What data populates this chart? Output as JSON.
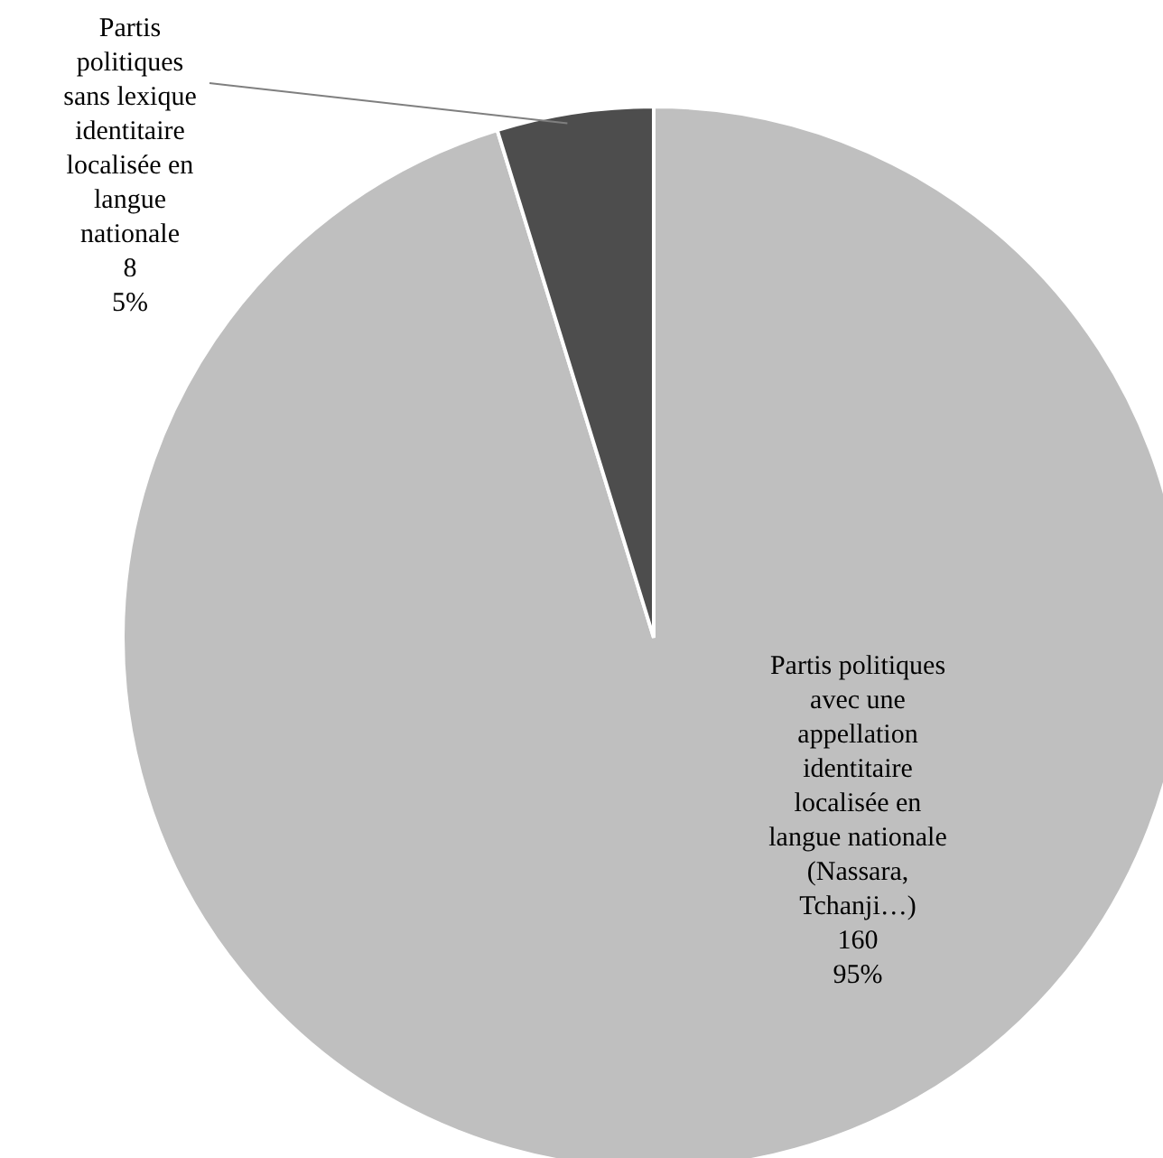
{
  "chart_data": {
    "type": "pie",
    "categories": [
      "Partis politiques avec une appellation identitaire localisée en langue nationale (Nassara, Tchanji…)",
      "Partis politiques sans lexique identitaire localisée en langue nationale"
    ],
    "values": [
      160,
      8
    ],
    "colors": [
      "#bfbfbf",
      "#4d4d4d"
    ],
    "value_labels": [
      "160\n95%",
      "8\n5%"
    ],
    "legend": false
  }
}
